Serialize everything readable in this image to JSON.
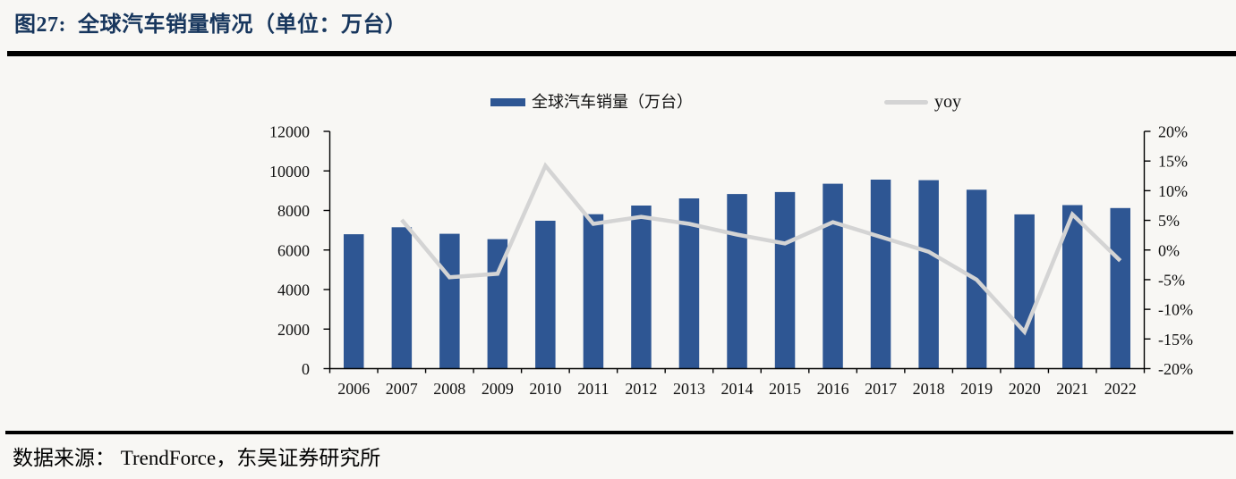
{
  "page": {
    "title": "图27:  全球汽车销量情况（单位：万台）",
    "source": "数据来源： TrendForce，东吴证券研究所"
  },
  "colors": {
    "title_text": "#17365d",
    "bar": "#2e5693",
    "line": "#d4d4d4",
    "axis": "#000000",
    "label_text": "#111111",
    "background": "#f8f7f4",
    "rule": "#000000"
  },
  "legend": [
    {
      "label": "全球汽车销量（万台）",
      "swatch": "bar-swatch"
    },
    {
      "label": "yoy",
      "swatch": "line-swatch"
    }
  ],
  "chart_data": {
    "type": "bar",
    "subtype": "bar+line-dual-axis",
    "title": "图27: 全球汽车销量情况（单位：万台）",
    "categories": [
      "2006",
      "2007",
      "2008",
      "2009",
      "2010",
      "2011",
      "2012",
      "2013",
      "2014",
      "2015",
      "2016",
      "2017",
      "2018",
      "2019",
      "2020",
      "2021",
      "2022"
    ],
    "series": [
      {
        "name": "全球汽车销量（万台）",
        "type": "bar",
        "axis": "left",
        "values": [
          6800,
          7150,
          6820,
          6550,
          7480,
          7810,
          8250,
          8610,
          8830,
          8930,
          9350,
          9560,
          9530,
          9050,
          7800,
          8270,
          8120
        ]
      },
      {
        "name": "yoy",
        "type": "line",
        "axis": "right",
        "values": [
          null,
          5.1,
          -4.6,
          -4.0,
          14.2,
          4.4,
          5.6,
          4.4,
          2.6,
          1.1,
          4.7,
          2.2,
          -0.3,
          -5.0,
          -13.8,
          6.0,
          -1.8
        ]
      }
    ],
    "left_axis": {
      "min": 0,
      "max": 12000,
      "step": 2000,
      "tick_labels": [
        "0",
        "2000",
        "4000",
        "6000",
        "8000",
        "10000",
        "12000"
      ]
    },
    "right_axis": {
      "min": -20,
      "max": 20,
      "step": 5,
      "tick_labels": [
        "-20%",
        "-15%",
        "-10%",
        "-5%",
        "0%",
        "5%",
        "10%",
        "15%",
        "20%"
      ]
    },
    "grid": false,
    "legend_position": "top",
    "xlabel": "",
    "ylabel": ""
  }
}
